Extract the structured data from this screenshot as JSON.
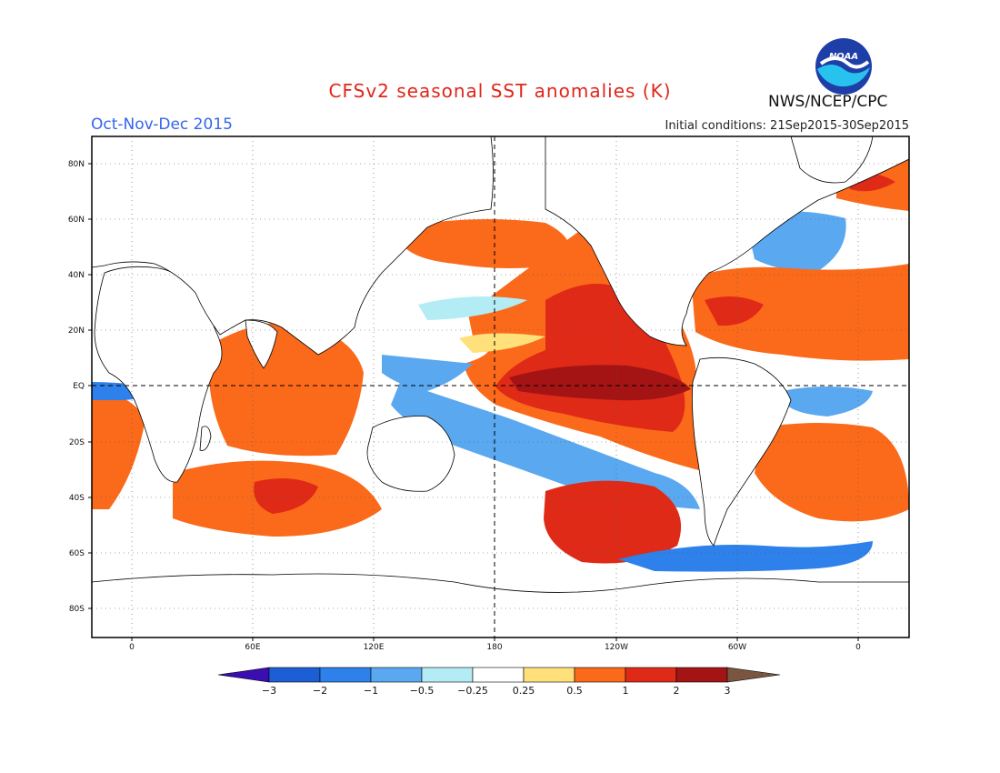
{
  "header": {
    "title": "CFSv2 seasonal SST anomalies (K)",
    "season": "Oct-Nov-Dec 2015",
    "initial_conditions": "Initial conditions: 21Sep2015-30Sep2015",
    "agency": "NWS/NCEP/CPC",
    "logo_text": "NOAA"
  },
  "map": {
    "projection": "cylindrical equidistant",
    "lon_ticks": [
      "0",
      "60E",
      "120E",
      "180",
      "120W",
      "60W",
      "0"
    ],
    "lat_ticks": [
      "80N",
      "60N",
      "40N",
      "20N",
      "EQ",
      "20S",
      "40S",
      "60S",
      "80S"
    ],
    "reference_lines": [
      "EQ",
      "180"
    ]
  },
  "colorbar": {
    "labels": [
      "-3",
      "-2",
      "-1",
      "-0.5",
      "-0.25",
      "0.25",
      "0.5",
      "1",
      "2",
      "3"
    ],
    "colors": [
      "#3a0eb0",
      "#1c5fd4",
      "#2e80ea",
      "#5aa8f0",
      "#b4ecf5",
      "#ffffff",
      "#ffe07a",
      "#fa6a1a",
      "#e02a18",
      "#a41414",
      "#7a5640"
    ],
    "units": "K"
  }
}
